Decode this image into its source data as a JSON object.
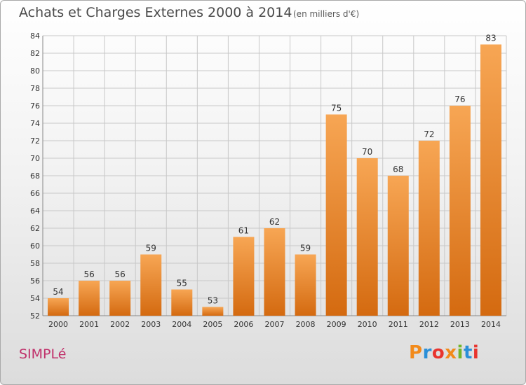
{
  "header": {
    "title": "Achats et Charges Externes 2000 à 2014",
    "subtitle": "(en milliers d'€)"
  },
  "footer": {
    "commune": "SIMPLé",
    "brand": "Proxiti",
    "brand_colors": [
      "#f28a1a",
      "#2a8fd8",
      "#e8342e",
      "#f28a1a",
      "#73b52b",
      "#2a8fd8",
      "#e8342e"
    ]
  },
  "colors": {
    "bar_top": "#f7a654",
    "bar_bottom": "#d46a10",
    "grid": "#c8c8c8",
    "axis_text": "#333333"
  },
  "chart_data": {
    "type": "bar",
    "categories": [
      "2000",
      "2001",
      "2002",
      "2003",
      "2004",
      "2005",
      "2006",
      "2007",
      "2008",
      "2009",
      "2010",
      "2011",
      "2012",
      "2013",
      "2014"
    ],
    "values": [
      54,
      56,
      56,
      59,
      55,
      53,
      61,
      62,
      59,
      75,
      70,
      68,
      72,
      76,
      83
    ],
    "ylim": [
      52,
      84
    ],
    "yticks": [
      52,
      54,
      56,
      58,
      60,
      62,
      64,
      66,
      68,
      70,
      72,
      74,
      76,
      78,
      80,
      82,
      84
    ],
    "grid": true,
    "data_labels": true
  }
}
